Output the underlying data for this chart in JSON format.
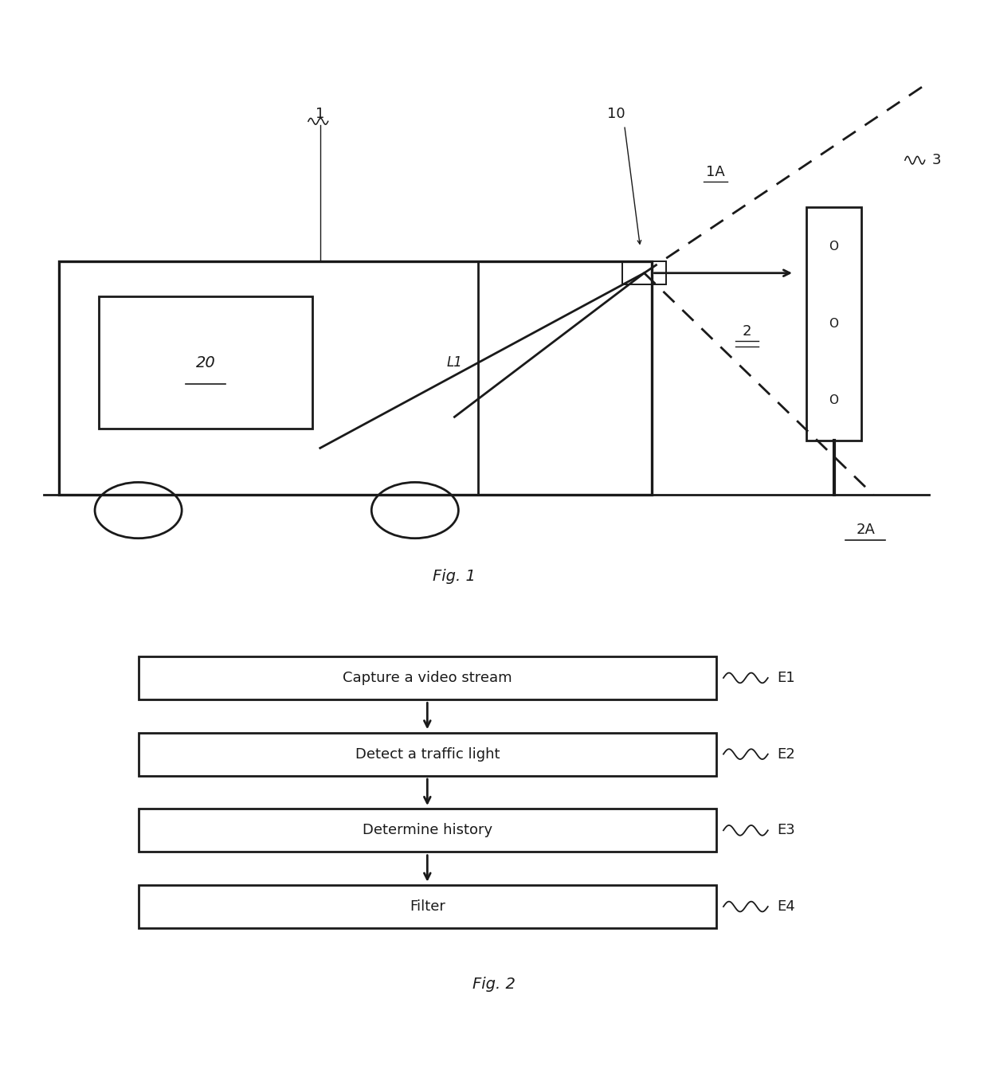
{
  "fig_width": 12.4,
  "fig_height": 13.67,
  "bg_color": "#ffffff",
  "line_color": "#1a1a1a",
  "fig1_label": "Fig. 1",
  "fig2_label": "Fig. 2",
  "flowchart_steps": [
    {
      "label": "Capture a video stream",
      "tag": "E1"
    },
    {
      "label": "Detect a traffic light",
      "tag": "E2"
    },
    {
      "label": "Determine history",
      "tag": "E3"
    },
    {
      "label": "Filter",
      "tag": "E4"
    }
  ],
  "annotations": {
    "label1": "1",
    "label10": "10",
    "label1A": "1A",
    "label2": "2",
    "label2A": "2A",
    "label3": "3",
    "label20": "20",
    "labelL1": "L1"
  }
}
